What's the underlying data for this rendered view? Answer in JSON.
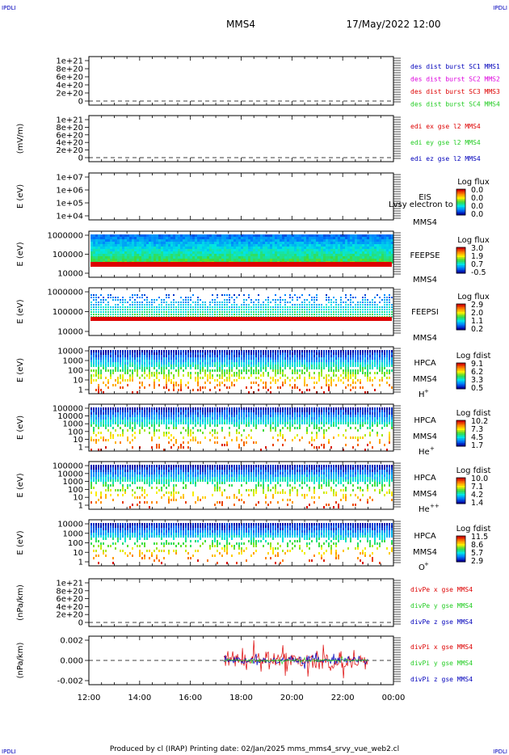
{
  "corner_labels": {
    "top_left": "IPDLI",
    "top_right": "IPDLI",
    "bottom_left": "IPDLI",
    "bottom_right": "IPDLI"
  },
  "header": {
    "spacecraft": "MMS4",
    "datetime": "17/May/2022 12:00"
  },
  "footer": {
    "text": "Produced by cl (IRAP)   Printing date: 02/Jan/2025   mms_mms4_srvy_vue_web2.cl"
  },
  "x_ticks": [
    "12:00",
    "14:00",
    "16:00",
    "18:00",
    "20:00",
    "22:00",
    "00:00"
  ],
  "colors": {
    "red": "#dd0000",
    "green": "#22cc22",
    "blue": "#0000bb",
    "magenta": "#dd00dd"
  },
  "chart_data": [
    {
      "type": "line",
      "ylabel": "",
      "yticks": [
        "1e+21",
        "8e+20",
        "6e+20",
        "4e+20",
        "2e+20",
        "0"
      ],
      "legend": [
        {
          "text": "des dist burst SC1 MMS1",
          "color": "#0000bb"
        },
        {
          "text": "des dist burst SC2 MMS2",
          "color": "#dd00dd"
        },
        {
          "text": "des dist burst SC3 MMS3",
          "color": "#dd0000"
        },
        {
          "text": "des dist burst SC4 MMS4",
          "color": "#22cc22"
        }
      ]
    },
    {
      "type": "line",
      "ylabel": "(mV/m)",
      "yticks": [
        "1e+21",
        "8e+20",
        "6e+20",
        "4e+20",
        "2e+20",
        "0"
      ],
      "legend": [
        {
          "text": "edi ex gse l2 MMS4",
          "color": "#dd0000"
        },
        {
          "text": "edi ey gse l2 MMS4",
          "color": "#22cc22"
        },
        {
          "text": "edi ez gse l2 MMS4",
          "color": "#0000bb"
        }
      ]
    },
    {
      "type": "heatmap",
      "ylabel": "E (eV)",
      "yticks": [
        "1e+07",
        "1e+06",
        "1e+05",
        "1e+04"
      ],
      "instrument": "EIS",
      "overlay": "Lvsy electron to",
      "sc": "MMS4",
      "colorbar": {
        "title": "Log flux",
        "ticks": [
          "0.0",
          "0.0",
          "0.0",
          "0.0"
        ]
      }
    },
    {
      "type": "heatmap",
      "ylabel": "E (eV)",
      "yticks": [
        "1000000",
        "100000",
        "10000"
      ],
      "instrument": "FEEPSE",
      "sc": "MMS4",
      "colorbar": {
        "title": "Log flux",
        "ticks": [
          "3.0",
          "1.9",
          "0.7",
          "-0.5"
        ]
      }
    },
    {
      "type": "heatmap",
      "ylabel": "E (eV)",
      "yticks": [
        "1000000",
        "100000",
        "10000"
      ],
      "instrument": "FEEPSI",
      "sc": "MMS4",
      "colorbar": {
        "title": "Log flux",
        "ticks": [
          "2.9",
          "2.0",
          "1.1",
          "0.2"
        ]
      }
    },
    {
      "type": "heatmap",
      "ylabel": "E (eV)",
      "yticks": [
        "10000",
        "1000",
        "100",
        "10",
        "1"
      ],
      "instrument": "HPCA",
      "sc": "MMS4",
      "species": "H",
      "species_sup": "+",
      "colorbar": {
        "title": "Log fdist",
        "ticks": [
          "9.1",
          "6.2",
          "3.3",
          "0.5"
        ]
      }
    },
    {
      "type": "heatmap",
      "ylabel": "E (eV)",
      "yticks": [
        "100000",
        "10000",
        "1000",
        "100",
        "10",
        "1"
      ],
      "instrument": "HPCA",
      "sc": "MMS4",
      "species": "He",
      "species_sup": "+",
      "colorbar": {
        "title": "Log fdist",
        "ticks": [
          "10.2",
          "7.3",
          "4.5",
          "1.7"
        ]
      }
    },
    {
      "type": "heatmap",
      "ylabel": "E (eV)",
      "yticks": [
        "100000",
        "10000",
        "1000",
        "100",
        "10",
        "1"
      ],
      "instrument": "HPCA",
      "sc": "MMS4",
      "species": "He",
      "species_sup": "++",
      "colorbar": {
        "title": "Log fdist",
        "ticks": [
          "10.0",
          "7.1",
          "4.2",
          "1.4"
        ]
      }
    },
    {
      "type": "heatmap",
      "ylabel": "E (eV)",
      "yticks": [
        "10000",
        "1000",
        "100",
        "10",
        "1"
      ],
      "instrument": "HPCA",
      "sc": "MMS4",
      "species": "O",
      "species_sup": "+",
      "colorbar": {
        "title": "Log fdist",
        "ticks": [
          "11.5",
          "8.6",
          "5.7",
          "2.9"
        ]
      }
    },
    {
      "type": "line",
      "ylabel": "(nPa/km)",
      "yticks": [
        "1e+21",
        "8e+20",
        "6e+20",
        "4e+20",
        "2e+20",
        "0"
      ],
      "legend": [
        {
          "text": "divPe x gse MMS4",
          "color": "#dd0000"
        },
        {
          "text": "divPe y gse MMS4",
          "color": "#22cc22"
        },
        {
          "text": "divPe z gse MMS4",
          "color": "#0000bb"
        }
      ]
    },
    {
      "type": "line",
      "ylabel": "(nPa/km)",
      "yticks": [
        "0.002",
        "0.000",
        "-0.002"
      ],
      "ylim": [
        -0.0032,
        0.0032
      ],
      "data_start": "17:10",
      "data_end": "23:00",
      "legend": [
        {
          "text": "divPi x gse MMS4",
          "color": "#dd0000"
        },
        {
          "text": "divPi y gse MMS4",
          "color": "#22cc22"
        },
        {
          "text": "divPi z gse MMS4",
          "color": "#0000bb"
        }
      ]
    }
  ]
}
